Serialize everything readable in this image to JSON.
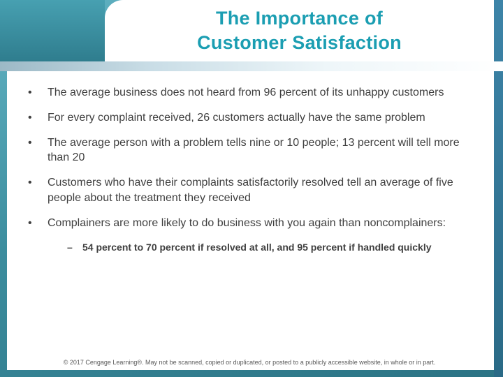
{
  "slide": {
    "title": {
      "line1": "The Importance of",
      "line2": "Customer Satisfaction"
    },
    "bullet_char": "•",
    "dash_char": "–",
    "bullets": [
      "The average business does not heard from 96 percent of its unhappy customers",
      "For every complaint received, 26 customers actually have the same problem",
      "The average person with a problem tells nine or 10 people; 13 percent will tell more than 20",
      "Customers who have their complaints satisfactorily resolved tell an average of five people about the treatment they received",
      "Complainers are more likely to do business with you again than noncomplainers:"
    ],
    "sub_bullets": [
      "54 percent to 70 percent if resolved at all, and 95 percent if handled quickly"
    ],
    "footer": "© 2017 Cengage Learning®. May not be scanned, copied or duplicated, or posted to a publicly accessible website, in whole or in part.",
    "colors": {
      "title_teal": "#1b9eb2",
      "frame_teal": "#3c8d9e",
      "right_strip_blue": "#2a6a86"
    }
  }
}
